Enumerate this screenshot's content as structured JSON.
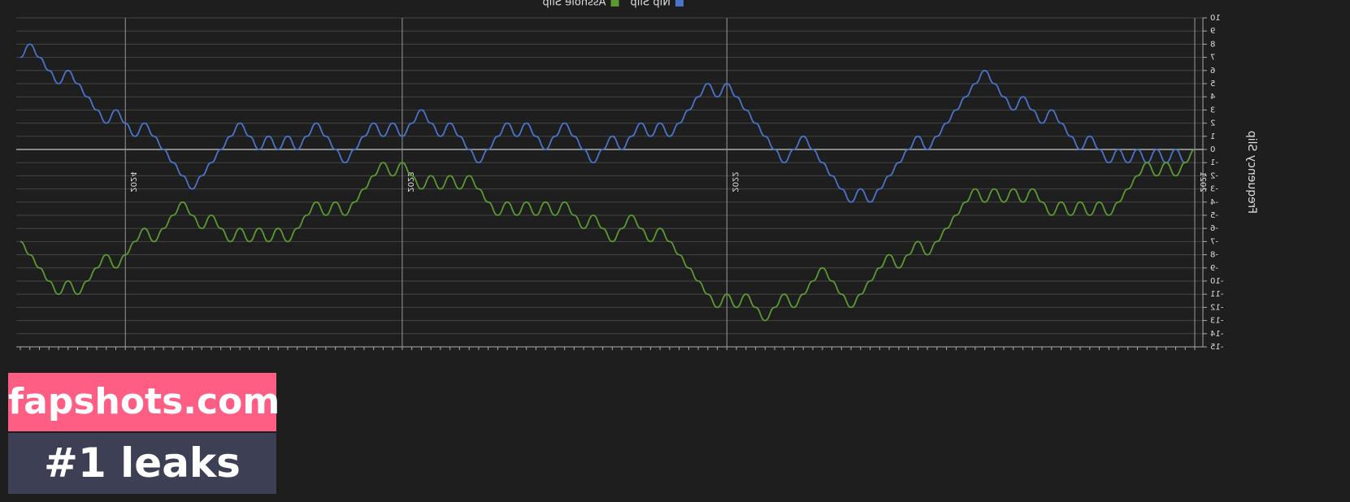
{
  "chart_data": {
    "type": "line",
    "y_axis_label": "Frequency Slip",
    "categories": [
      null,
      null,
      null,
      null,
      null,
      null,
      null,
      null,
      null,
      null,
      null,
      null,
      null,
      null,
      null,
      null,
      null,
      null,
      null,
      null,
      null,
      null,
      null,
      null,
      null,
      null,
      null,
      null,
      null,
      null,
      null,
      null,
      null,
      null,
      null,
      null,
      null,
      null,
      null,
      null,
      null,
      null,
      null,
      null,
      null,
      null,
      null,
      null,
      null,
      null,
      null,
      null,
      null,
      null,
      null,
      null,
      null,
      null,
      null,
      null,
      null,
      null,
      null,
      null,
      null,
      null,
      null,
      null,
      null,
      null,
      null,
      null,
      null,
      null,
      null,
      null,
      null,
      null,
      null,
      null,
      null,
      null,
      null,
      null,
      null,
      null,
      null,
      null,
      null,
      null,
      null,
      null,
      null,
      null,
      null,
      null,
      null,
      null,
      null,
      null,
      null,
      null,
      null,
      null,
      null,
      null,
      null,
      null,
      null,
      null,
      null,
      null,
      null,
      null,
      null,
      null,
      null,
      null,
      null,
      null,
      null,
      null,
      null,
      null
    ],
    "series": [
      {
        "name": "Nip Slip",
        "color": "#4a74c9",
        "values": [
          0,
          -1,
          0,
          -1,
          0,
          -1,
          0,
          -1,
          0,
          -1,
          0,
          1,
          0,
          1,
          2,
          3,
          2,
          3,
          4,
          3,
          4,
          5,
          6,
          5,
          4,
          3,
          2,
          1,
          0,
          1,
          0,
          -1,
          -2,
          -3,
          -4,
          -3,
          -4,
          -3,
          -2,
          -1,
          0,
          1,
          0,
          -1,
          0,
          1,
          2,
          3,
          4,
          5,
          4,
          5,
          4,
          3,
          2,
          1,
          2,
          1,
          2,
          1,
          0,
          1,
          0,
          -1,
          0,
          1,
          2,
          1,
          0,
          1,
          2,
          1,
          2,
          1,
          0,
          -1,
          0,
          1,
          2,
          1,
          2,
          3,
          2,
          1,
          2,
          1,
          2,
          1,
          0,
          -1,
          0,
          1,
          2,
          1,
          0,
          1,
          0,
          1,
          0,
          1,
          2,
          1,
          0,
          -1,
          -2,
          -3,
          -2,
          -1,
          0,
          1,
          2,
          1,
          2,
          3,
          2,
          3,
          4,
          5,
          6,
          5,
          6,
          7,
          8,
          7
        ]
      },
      {
        "name": "Asshole Slip",
        "color": "#5a9a32",
        "values": [
          0,
          -1,
          -2,
          -1,
          -2,
          -1,
          -2,
          -3,
          -4,
          -5,
          -4,
          -5,
          -4,
          -5,
          -4,
          -5,
          -4,
          -3,
          -4,
          -3,
          -4,
          -3,
          -4,
          -3,
          -4,
          -5,
          -6,
          -7,
          -8,
          -7,
          -8,
          -9,
          -8,
          -9,
          -10,
          -11,
          -12,
          -11,
          -10,
          -9,
          -10,
          -11,
          -12,
          -11,
          -12,
          -13,
          -12,
          -11,
          -12,
          -11,
          -12,
          -11,
          -10,
          -9,
          -8,
          -7,
          -6,
          -7,
          -6,
          -5,
          -6,
          -7,
          -6,
          -5,
          -6,
          -5,
          -4,
          -5,
          -4,
          -5,
          -4,
          -5,
          -4,
          -5,
          -4,
          -3,
          -2,
          -3,
          -2,
          -3,
          -2,
          -3,
          -2,
          -1,
          -2,
          -1,
          -2,
          -3,
          -4,
          -5,
          -4,
          -5,
          -4,
          -5,
          -6,
          -7,
          -6,
          -7,
          -6,
          -7,
          -6,
          -7,
          -6,
          -5,
          -6,
          -5,
          -4,
          -5,
          -6,
          -7,
          -6,
          -7,
          -8,
          -9,
          -8,
          -9,
          -10,
          -11,
          -10,
          -11,
          -10,
          -9,
          -8,
          -7
        ]
      }
    ],
    "year_markers": [
      {
        "text": "2021",
        "at": 0
      },
      {
        "text": "2022",
        "at": 49
      },
      {
        "text": "2023",
        "at": 83
      },
      {
        "text": "2024",
        "at": 112
      }
    ],
    "ylim": [
      -15,
      10
    ],
    "yticks": [
      -15,
      -14,
      -13,
      -12,
      -11,
      -10,
      -9,
      -8,
      -7,
      -6,
      -5,
      -4,
      -3,
      -2,
      -1,
      0,
      1,
      2,
      3,
      4,
      5,
      6,
      7,
      8,
      9,
      10
    ],
    "grid": true,
    "legend": "top"
  },
  "watermark": {
    "line1": "fapshots.com",
    "line2": "#1 leaks"
  }
}
